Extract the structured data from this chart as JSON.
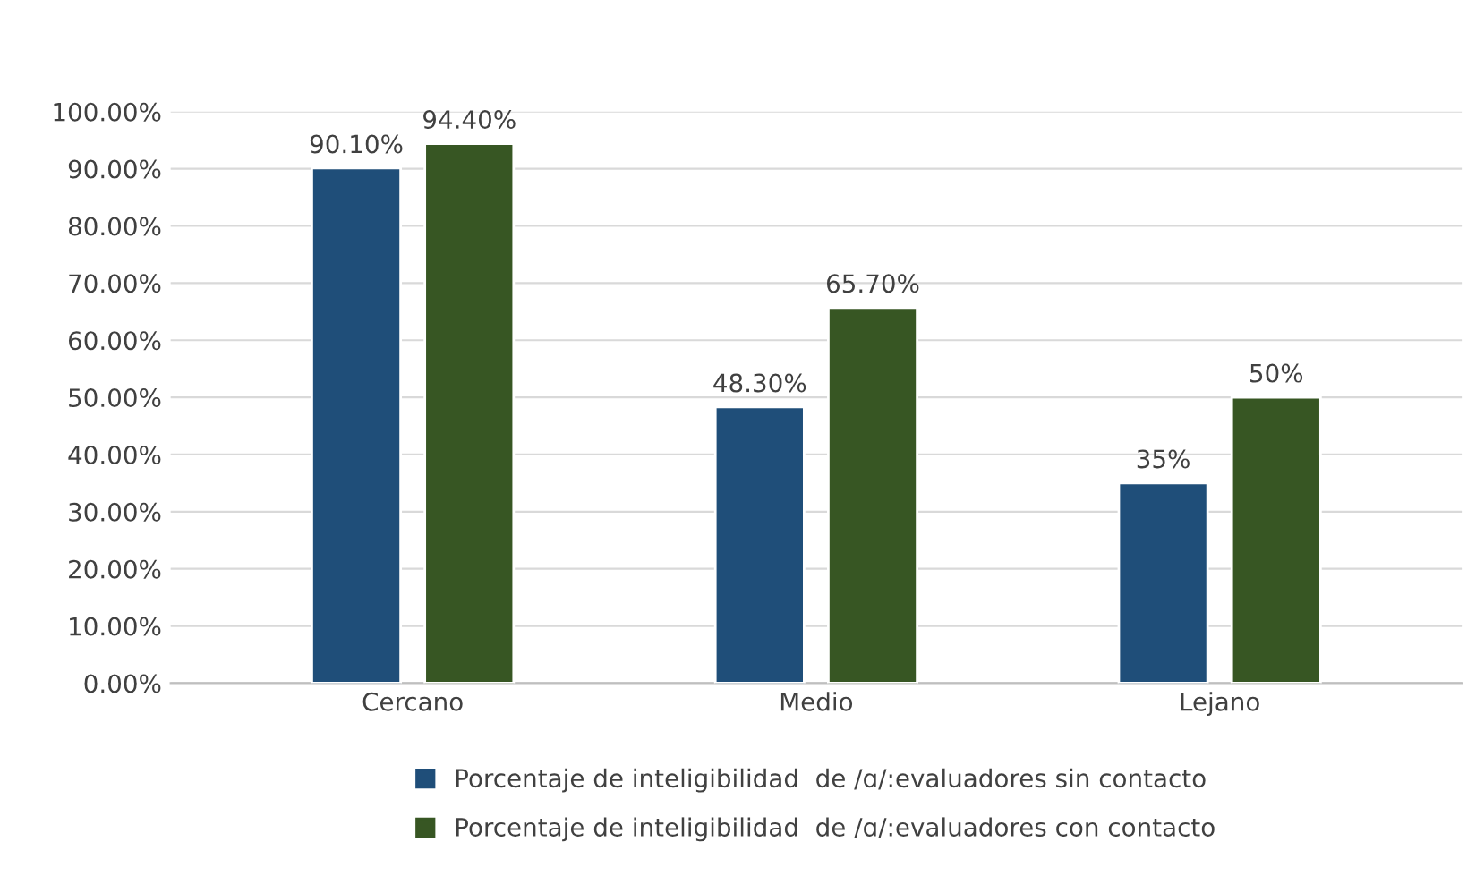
{
  "chart_data": {
    "type": "bar",
    "categories": [
      "Cercano",
      "Medio",
      "Lejano"
    ],
    "series": [
      {
        "name": "Porcentaje de inteligibilidad  de /ɑ/:evaluadores sin contacto",
        "color": "#1f4e79",
        "values": [
          90.1,
          48.3,
          35
        ],
        "value_labels": [
          "90.10%",
          "48.30%",
          "35%"
        ]
      },
      {
        "name": "Porcentaje de inteligibilidad  de /ɑ/:evaluadores con contacto",
        "color": "#375623",
        "values": [
          94.4,
          65.7,
          50
        ],
        "value_labels": [
          "94.40%",
          "65.70%",
          "50%"
        ]
      }
    ],
    "ylim": [
      0,
      100
    ],
    "yticks": [
      {
        "value": 0,
        "label": "0.00%"
      },
      {
        "value": 10,
        "label": "10.00%"
      },
      {
        "value": 20,
        "label": "20.00%"
      },
      {
        "value": 30,
        "label": "30.00%"
      },
      {
        "value": 40,
        "label": "40.00%"
      },
      {
        "value": 50,
        "label": "50.00%"
      },
      {
        "value": 60,
        "label": "60.00%"
      },
      {
        "value": 70,
        "label": "70.00%"
      },
      {
        "value": 80,
        "label": "80.00%"
      },
      {
        "value": 90,
        "label": "90.00%"
      },
      {
        "value": 100,
        "label": "100.00%"
      }
    ],
    "grid": "y",
    "legend": "bottom"
  }
}
